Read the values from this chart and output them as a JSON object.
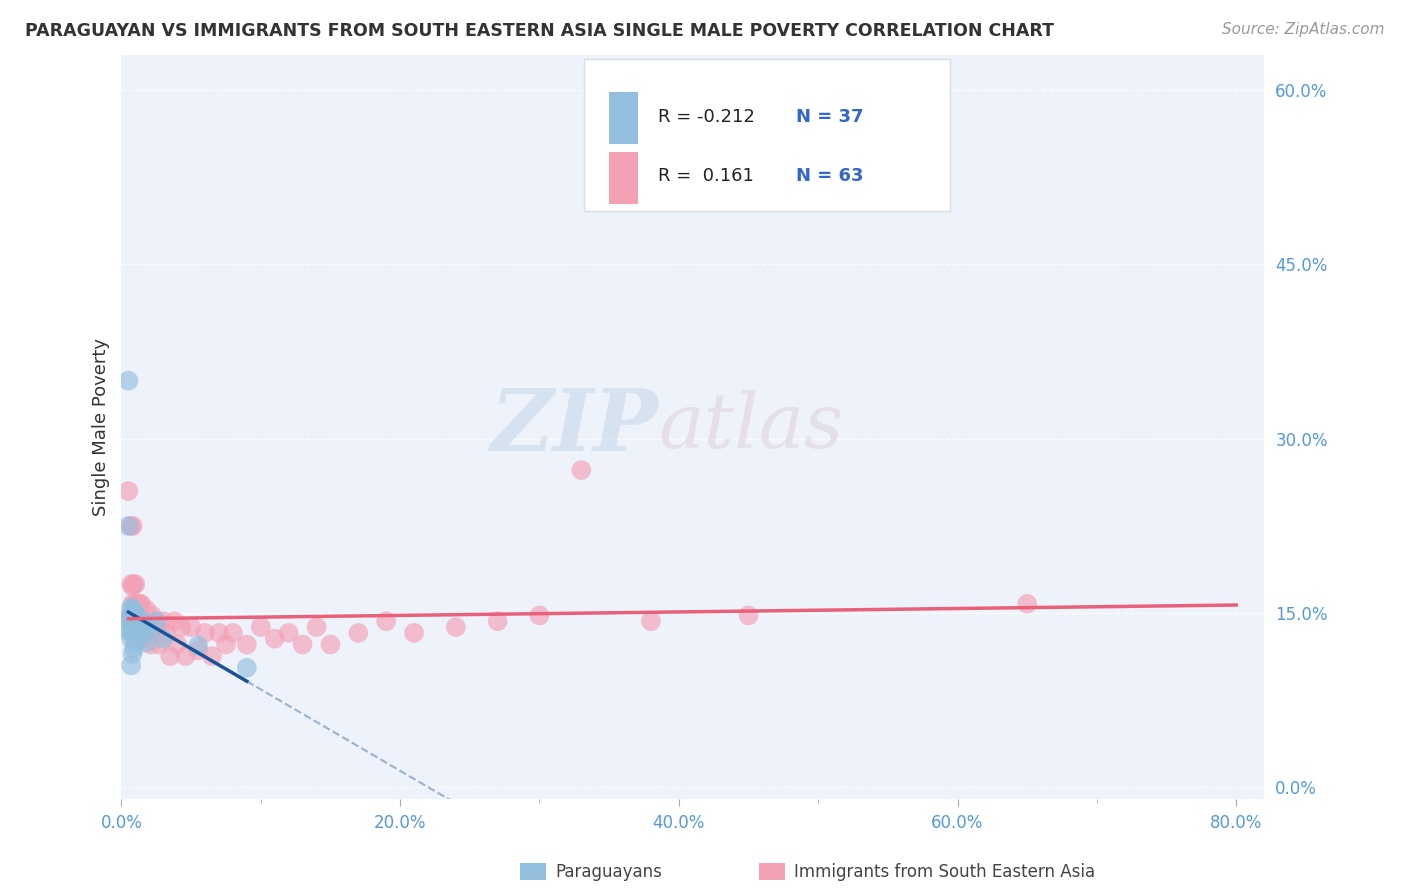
{
  "title": "PARAGUAYAN VS IMMIGRANTS FROM SOUTH EASTERN ASIA SINGLE MALE POVERTY CORRELATION CHART",
  "source": "Source: ZipAtlas.com",
  "ylabel": "Single Male Poverty",
  "legend_label1": "Paraguayans",
  "legend_label2": "Immigrants from South Eastern Asia",
  "R1": "-0.212",
  "N1": "37",
  "R2": "0.161",
  "N2": "63",
  "color1": "#92bfde",
  "color2": "#f4a0b5",
  "trendline1_color": "#1a5296",
  "trendline2_color": "#e8607a",
  "watermark_zip": "ZIP",
  "watermark_atlas": "atlas",
  "background_color": "#ffffff",
  "plot_bg_color": "#eef2fa",
  "title_color": "#333333",
  "source_color": "#999999",
  "tick_label_color": "#5599dd",
  "ylabel_color": "#333333",
  "xlim": [
    0.0,
    0.82
  ],
  "ylim": [
    0.0,
    0.63
  ],
  "xticks": [
    0.0,
    0.1,
    0.2,
    0.3,
    0.4,
    0.5,
    0.6,
    0.7,
    0.8
  ],
  "yticks": [
    0.0,
    0.15,
    0.3,
    0.45,
    0.6
  ],
  "grid_color": "#ffffff",
  "paraguayan_x": [
    0.005,
    0.005,
    0.005,
    0.005,
    0.007,
    0.007,
    0.007,
    0.007,
    0.007,
    0.007,
    0.007,
    0.008,
    0.008,
    0.008,
    0.008,
    0.009,
    0.009,
    0.009,
    0.009,
    0.009,
    0.01,
    0.01,
    0.01,
    0.01,
    0.011,
    0.012,
    0.013,
    0.014,
    0.015,
    0.016,
    0.017,
    0.018,
    0.02,
    0.025,
    0.03,
    0.055,
    0.09
  ],
  "paraguayan_y": [
    0.35,
    0.225,
    0.145,
    0.135,
    0.155,
    0.148,
    0.143,
    0.138,
    0.133,
    0.128,
    0.105,
    0.153,
    0.147,
    0.143,
    0.115,
    0.152,
    0.147,
    0.143,
    0.135,
    0.12,
    0.148,
    0.143,
    0.138,
    0.125,
    0.148,
    0.143,
    0.138,
    0.132,
    0.143,
    0.132,
    0.138,
    0.125,
    0.138,
    0.143,
    0.128,
    0.122,
    0.103
  ],
  "sea_x": [
    0.005,
    0.006,
    0.007,
    0.007,
    0.007,
    0.008,
    0.008,
    0.008,
    0.009,
    0.009,
    0.009,
    0.01,
    0.01,
    0.01,
    0.011,
    0.011,
    0.012,
    0.012,
    0.013,
    0.013,
    0.014,
    0.014,
    0.015,
    0.015,
    0.016,
    0.017,
    0.018,
    0.02,
    0.021,
    0.022,
    0.025,
    0.027,
    0.03,
    0.032,
    0.035,
    0.038,
    0.04,
    0.043,
    0.046,
    0.05,
    0.055,
    0.06,
    0.065,
    0.07,
    0.075,
    0.08,
    0.09,
    0.1,
    0.11,
    0.12,
    0.13,
    0.14,
    0.15,
    0.17,
    0.19,
    0.21,
    0.24,
    0.27,
    0.3,
    0.33,
    0.38,
    0.45,
    0.65
  ],
  "sea_y": [
    0.255,
    0.148,
    0.225,
    0.175,
    0.143,
    0.225,
    0.173,
    0.158,
    0.175,
    0.153,
    0.133,
    0.175,
    0.158,
    0.133,
    0.158,
    0.133,
    0.158,
    0.133,
    0.158,
    0.133,
    0.158,
    0.128,
    0.143,
    0.128,
    0.143,
    0.133,
    0.153,
    0.133,
    0.123,
    0.148,
    0.138,
    0.123,
    0.143,
    0.133,
    0.113,
    0.143,
    0.123,
    0.138,
    0.113,
    0.138,
    0.118,
    0.133,
    0.113,
    0.133,
    0.123,
    0.133,
    0.123,
    0.138,
    0.128,
    0.133,
    0.123,
    0.138,
    0.123,
    0.133,
    0.143,
    0.133,
    0.138,
    0.143,
    0.148,
    0.273,
    0.143,
    0.148,
    0.158
  ]
}
